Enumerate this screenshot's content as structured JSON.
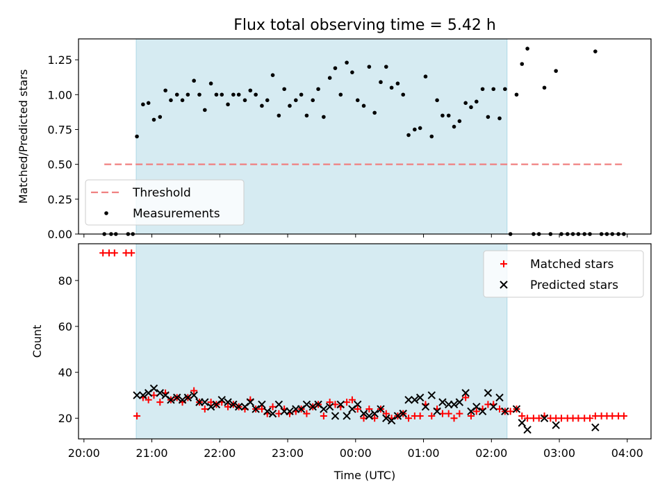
{
  "chart_data": [
    {
      "type": "scatter",
      "title": "Flux total observing time = 5.42 h",
      "xlabel": "",
      "ylabel": "Matched/Predicted stars",
      "ylim": [
        0,
        1.4
      ],
      "yticks": [
        "0.00",
        "0.25",
        "0.50",
        "0.75",
        "1.00",
        "1.25"
      ],
      "xlim_hours": [
        19.92,
        28.35
      ],
      "x_unit": "hours since 20:00 UTC (values past 24 are after midnight)",
      "legend_position": "lower-left",
      "shaded_span": [
        20.77,
        26.23
      ],
      "shade_color": "#add8e6",
      "threshold": {
        "name": "Threshold",
        "y": 0.5,
        "x_range": [
          20.3,
          27.97
        ],
        "color": "#f08080"
      },
      "series": [
        {
          "name": "Measurements",
          "color": "#000000",
          "points": [
            [
              20.3,
              0
            ],
            [
              20.4,
              0
            ],
            [
              20.47,
              0
            ],
            [
              20.65,
              0
            ],
            [
              20.72,
              0
            ],
            [
              20.78,
              0.7
            ],
            [
              20.87,
              0.93
            ],
            [
              20.95,
              0.94
            ],
            [
              21.03,
              0.82
            ],
            [
              21.12,
              0.84
            ],
            [
              21.2,
              1.03
            ],
            [
              21.28,
              0.96
            ],
            [
              21.37,
              1.0
            ],
            [
              21.45,
              0.96
            ],
            [
              21.53,
              1.0
            ],
            [
              21.62,
              1.1
            ],
            [
              21.7,
              1.0
            ],
            [
              21.78,
              0.89
            ],
            [
              21.87,
              1.08
            ],
            [
              21.95,
              1.0
            ],
            [
              22.03,
              1.0
            ],
            [
              22.12,
              0.93
            ],
            [
              22.2,
              1.0
            ],
            [
              22.28,
              1.0
            ],
            [
              22.37,
              0.96
            ],
            [
              22.45,
              1.03
            ],
            [
              22.53,
              1.0
            ],
            [
              22.62,
              0.92
            ],
            [
              22.7,
              0.96
            ],
            [
              22.78,
              1.14
            ],
            [
              22.87,
              0.85
            ],
            [
              22.95,
              1.04
            ],
            [
              23.03,
              0.92
            ],
            [
              23.12,
              0.96
            ],
            [
              23.2,
              1.0
            ],
            [
              23.28,
              0.85
            ],
            [
              23.37,
              0.96
            ],
            [
              23.45,
              1.04
            ],
            [
              23.53,
              0.84
            ],
            [
              23.62,
              1.12
            ],
            [
              23.7,
              1.19
            ],
            [
              23.78,
              1.0
            ],
            [
              23.87,
              1.23
            ],
            [
              23.95,
              1.16
            ],
            [
              24.03,
              0.96
            ],
            [
              24.12,
              0.92
            ],
            [
              24.2,
              1.2
            ],
            [
              24.28,
              0.87
            ],
            [
              24.37,
              1.09
            ],
            [
              24.45,
              1.2
            ],
            [
              24.53,
              1.05
            ],
            [
              24.62,
              1.08
            ],
            [
              24.7,
              1.0
            ],
            [
              24.78,
              0.71
            ],
            [
              24.87,
              0.75
            ],
            [
              24.95,
              0.76
            ],
            [
              25.03,
              1.13
            ],
            [
              25.12,
              0.7
            ],
            [
              25.2,
              0.96
            ],
            [
              25.28,
              0.85
            ],
            [
              25.37,
              0.85
            ],
            [
              25.45,
              0.77
            ],
            [
              25.53,
              0.81
            ],
            [
              25.62,
              0.94
            ],
            [
              25.7,
              0.91
            ],
            [
              25.78,
              0.95
            ],
            [
              25.87,
              1.04
            ],
            [
              25.95,
              0.84
            ],
            [
              26.03,
              1.04
            ],
            [
              26.12,
              0.83
            ],
            [
              26.2,
              1.04
            ],
            [
              26.28,
              0
            ],
            [
              26.37,
              1.0
            ],
            [
              26.45,
              1.22
            ],
            [
              26.53,
              1.33
            ],
            [
              26.62,
              0
            ],
            [
              26.7,
              0
            ],
            [
              26.78,
              1.05
            ],
            [
              26.87,
              0
            ],
            [
              26.95,
              1.17
            ],
            [
              27.03,
              0
            ],
            [
              27.12,
              0
            ],
            [
              27.2,
              0
            ],
            [
              27.28,
              0
            ],
            [
              27.37,
              0
            ],
            [
              27.45,
              0
            ],
            [
              27.53,
              1.31
            ],
            [
              27.62,
              0
            ],
            [
              27.7,
              0
            ],
            [
              27.78,
              0
            ],
            [
              27.87,
              0
            ],
            [
              27.95,
              0
            ]
          ]
        }
      ]
    },
    {
      "type": "scatter",
      "title": "",
      "xlabel": "Time (UTC)",
      "ylabel": "Count",
      "ylim": [
        11,
        96
      ],
      "yticks": [
        "20",
        "40",
        "60",
        "80"
      ],
      "xlim_hours": [
        19.92,
        28.35
      ],
      "xticks": [
        "20:00",
        "21:00",
        "22:00",
        "23:00",
        "00:00",
        "01:00",
        "02:00",
        "03:00",
        "04:00"
      ],
      "legend_position": "upper-right",
      "shaded_span": [
        20.77,
        26.23
      ],
      "shade_color": "#add8e6",
      "series": [
        {
          "name": "Matched stars",
          "marker": "plus",
          "color": "#ff0000",
          "points": [
            [
              20.28,
              92
            ],
            [
              20.37,
              92
            ],
            [
              20.45,
              92
            ],
            [
              20.62,
              92
            ],
            [
              20.7,
              92
            ],
            [
              20.78,
              21
            ],
            [
              20.87,
              29
            ],
            [
              20.95,
              28
            ],
            [
              21.03,
              30
            ],
            [
              21.12,
              27
            ],
            [
              21.2,
              31
            ],
            [
              21.28,
              28
            ],
            [
              21.37,
              29
            ],
            [
              21.45,
              27
            ],
            [
              21.53,
              29
            ],
            [
              21.62,
              32
            ],
            [
              21.7,
              27
            ],
            [
              21.78,
              24
            ],
            [
              21.87,
              27
            ],
            [
              21.95,
              26
            ],
            [
              22.03,
              27
            ],
            [
              22.12,
              25
            ],
            [
              22.2,
              26
            ],
            [
              22.28,
              25
            ],
            [
              22.37,
              24
            ],
            [
              22.45,
              28
            ],
            [
              22.53,
              24
            ],
            [
              22.62,
              24
            ],
            [
              22.7,
              22
            ],
            [
              22.78,
              25
            ],
            [
              22.87,
              22
            ],
            [
              22.95,
              24
            ],
            [
              23.03,
              22
            ],
            [
              23.12,
              23
            ],
            [
              23.2,
              24
            ],
            [
              23.28,
              22
            ],
            [
              23.37,
              25
            ],
            [
              23.45,
              26
            ],
            [
              23.53,
              21
            ],
            [
              23.62,
              27
            ],
            [
              23.7,
              26
            ],
            [
              23.78,
              25
            ],
            [
              23.87,
              27
            ],
            [
              23.95,
              28
            ],
            [
              24.03,
              24
            ],
            [
              24.12,
              20
            ],
            [
              24.2,
              24
            ],
            [
              24.28,
              20
            ],
            [
              24.37,
              24
            ],
            [
              24.45,
              22
            ],
            [
              24.53,
              20
            ],
            [
              24.62,
              21
            ],
            [
              24.7,
              22
            ],
            [
              24.78,
              20
            ],
            [
              24.87,
              21
            ],
            [
              24.95,
              21
            ],
            [
              25.03,
              26
            ],
            [
              25.12,
              21
            ],
            [
              25.2,
              24
            ],
            [
              25.28,
              22
            ],
            [
              25.37,
              22
            ],
            [
              25.45,
              20
            ],
            [
              25.53,
              22
            ],
            [
              25.62,
              29
            ],
            [
              25.7,
              21
            ],
            [
              25.78,
              23
            ],
            [
              25.87,
              24
            ],
            [
              25.95,
              26
            ],
            [
              26.03,
              26
            ],
            [
              26.12,
              24
            ],
            [
              26.2,
              23
            ],
            [
              26.28,
              23
            ],
            [
              26.37,
              24
            ],
            [
              26.45,
              21
            ],
            [
              26.53,
              20
            ],
            [
              26.62,
              20
            ],
            [
              26.7,
              20
            ],
            [
              26.78,
              21
            ],
            [
              26.87,
              20
            ],
            [
              26.95,
              20
            ],
            [
              27.03,
              20
            ],
            [
              27.12,
              20
            ],
            [
              27.2,
              20
            ],
            [
              27.28,
              20
            ],
            [
              27.37,
              20
            ],
            [
              27.45,
              20
            ],
            [
              27.53,
              21
            ],
            [
              27.62,
              21
            ],
            [
              27.7,
              21
            ],
            [
              27.78,
              21
            ],
            [
              27.87,
              21
            ],
            [
              27.95,
              21
            ]
          ]
        },
        {
          "name": "Predicted stars",
          "marker": "x",
          "color": "#000000",
          "points": [
            [
              20.78,
              30
            ],
            [
              20.87,
              30
            ],
            [
              20.95,
              31
            ],
            [
              21.03,
              33
            ],
            [
              21.12,
              31
            ],
            [
              21.2,
              30
            ],
            [
              21.28,
              28
            ],
            [
              21.37,
              29
            ],
            [
              21.45,
              28
            ],
            [
              21.53,
              29
            ],
            [
              21.62,
              30
            ],
            [
              21.7,
              27
            ],
            [
              21.78,
              27
            ],
            [
              21.87,
              25
            ],
            [
              21.95,
              26
            ],
            [
              22.03,
              28
            ],
            [
              22.12,
              27
            ],
            [
              22.2,
              26
            ],
            [
              22.28,
              25
            ],
            [
              22.37,
              25
            ],
            [
              22.45,
              27
            ],
            [
              22.53,
              24
            ],
            [
              22.62,
              26
            ],
            [
              22.7,
              23
            ],
            [
              22.78,
              22
            ],
            [
              22.87,
              26
            ],
            [
              22.95,
              23
            ],
            [
              23.03,
              23
            ],
            [
              23.12,
              24
            ],
            [
              23.2,
              24
            ],
            [
              23.28,
              26
            ],
            [
              23.37,
              25
            ],
            [
              23.45,
              26
            ],
            [
              23.53,
              24
            ],
            [
              23.62,
              25
            ],
            [
              23.7,
              21
            ],
            [
              23.78,
              26
            ],
            [
              23.87,
              21
            ],
            [
              23.95,
              24
            ],
            [
              24.03,
              26
            ],
            [
              24.12,
              22
            ],
            [
              24.2,
              21
            ],
            [
              24.28,
              22
            ],
            [
              24.37,
              24
            ],
            [
              24.45,
              20
            ],
            [
              24.53,
              19
            ],
            [
              24.62,
              21
            ],
            [
              24.7,
              22
            ],
            [
              24.78,
              28
            ],
            [
              24.87,
              28
            ],
            [
              24.95,
              29
            ],
            [
              25.03,
              25
            ],
            [
              25.12,
              30
            ],
            [
              25.2,
              23
            ],
            [
              25.28,
              27
            ],
            [
              25.37,
              26
            ],
            [
              25.45,
              26
            ],
            [
              25.53,
              27
            ],
            [
              25.62,
              31
            ],
            [
              25.7,
              23
            ],
            [
              25.78,
              25
            ],
            [
              25.87,
              23
            ],
            [
              25.95,
              31
            ],
            [
              26.03,
              25
            ],
            [
              26.12,
              29
            ],
            [
              26.2,
              23
            ],
            [
              26.37,
              24
            ],
            [
              26.45,
              18
            ],
            [
              26.53,
              15
            ],
            [
              26.78,
              20
            ],
            [
              26.95,
              17
            ],
            [
              27.53,
              16
            ]
          ]
        }
      ]
    }
  ]
}
